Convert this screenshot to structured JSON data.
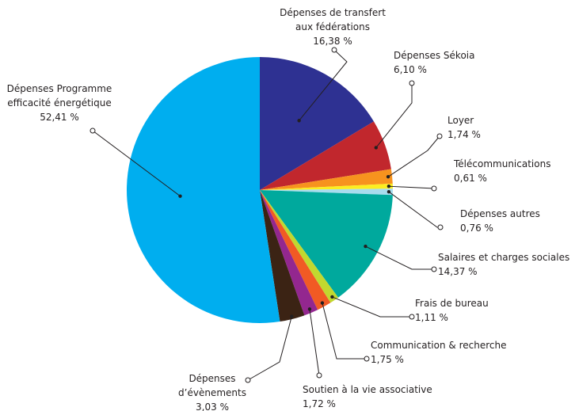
{
  "chart_data": {
    "type": "pie",
    "labels": [
      [
        "Dépenses de transfert",
        "aux fédérations"
      ],
      [
        "Dépenses  Sékoia"
      ],
      [
        "Loyer"
      ],
      [
        "Télécommunications"
      ],
      [
        "Dépenses autres"
      ],
      [
        "Salaires et charges sociales"
      ],
      [
        "Frais de bureau"
      ],
      [
        "Communication & recherche"
      ],
      [
        "Soutien à la vie associative"
      ],
      [
        "Dépenses",
        "d’évènements"
      ],
      [
        "Dépenses Programme",
        "efficacité énergétique"
      ]
    ],
    "values": [
      16.38,
      6.1,
      1.74,
      0.61,
      0.76,
      14.37,
      1.11,
      1.75,
      1.72,
      3.03,
      52.41
    ],
    "value_labels": [
      "16,38 %",
      "6,10 %",
      "1,74 %",
      "0,61 %",
      "0,76 %",
      "14,37 %",
      "1,11 %",
      "1,75 %",
      "1,72 %",
      "3,03 %",
      "52,41 %"
    ],
    "colors": [
      "#2e3192",
      "#c1272d",
      "#f7931e",
      "#fcee21",
      "#a8dcee",
      "#00a99d",
      "#c1d82f",
      "#f15a24",
      "#93278f",
      "#3b2314",
      "#00aeef"
    ]
  }
}
